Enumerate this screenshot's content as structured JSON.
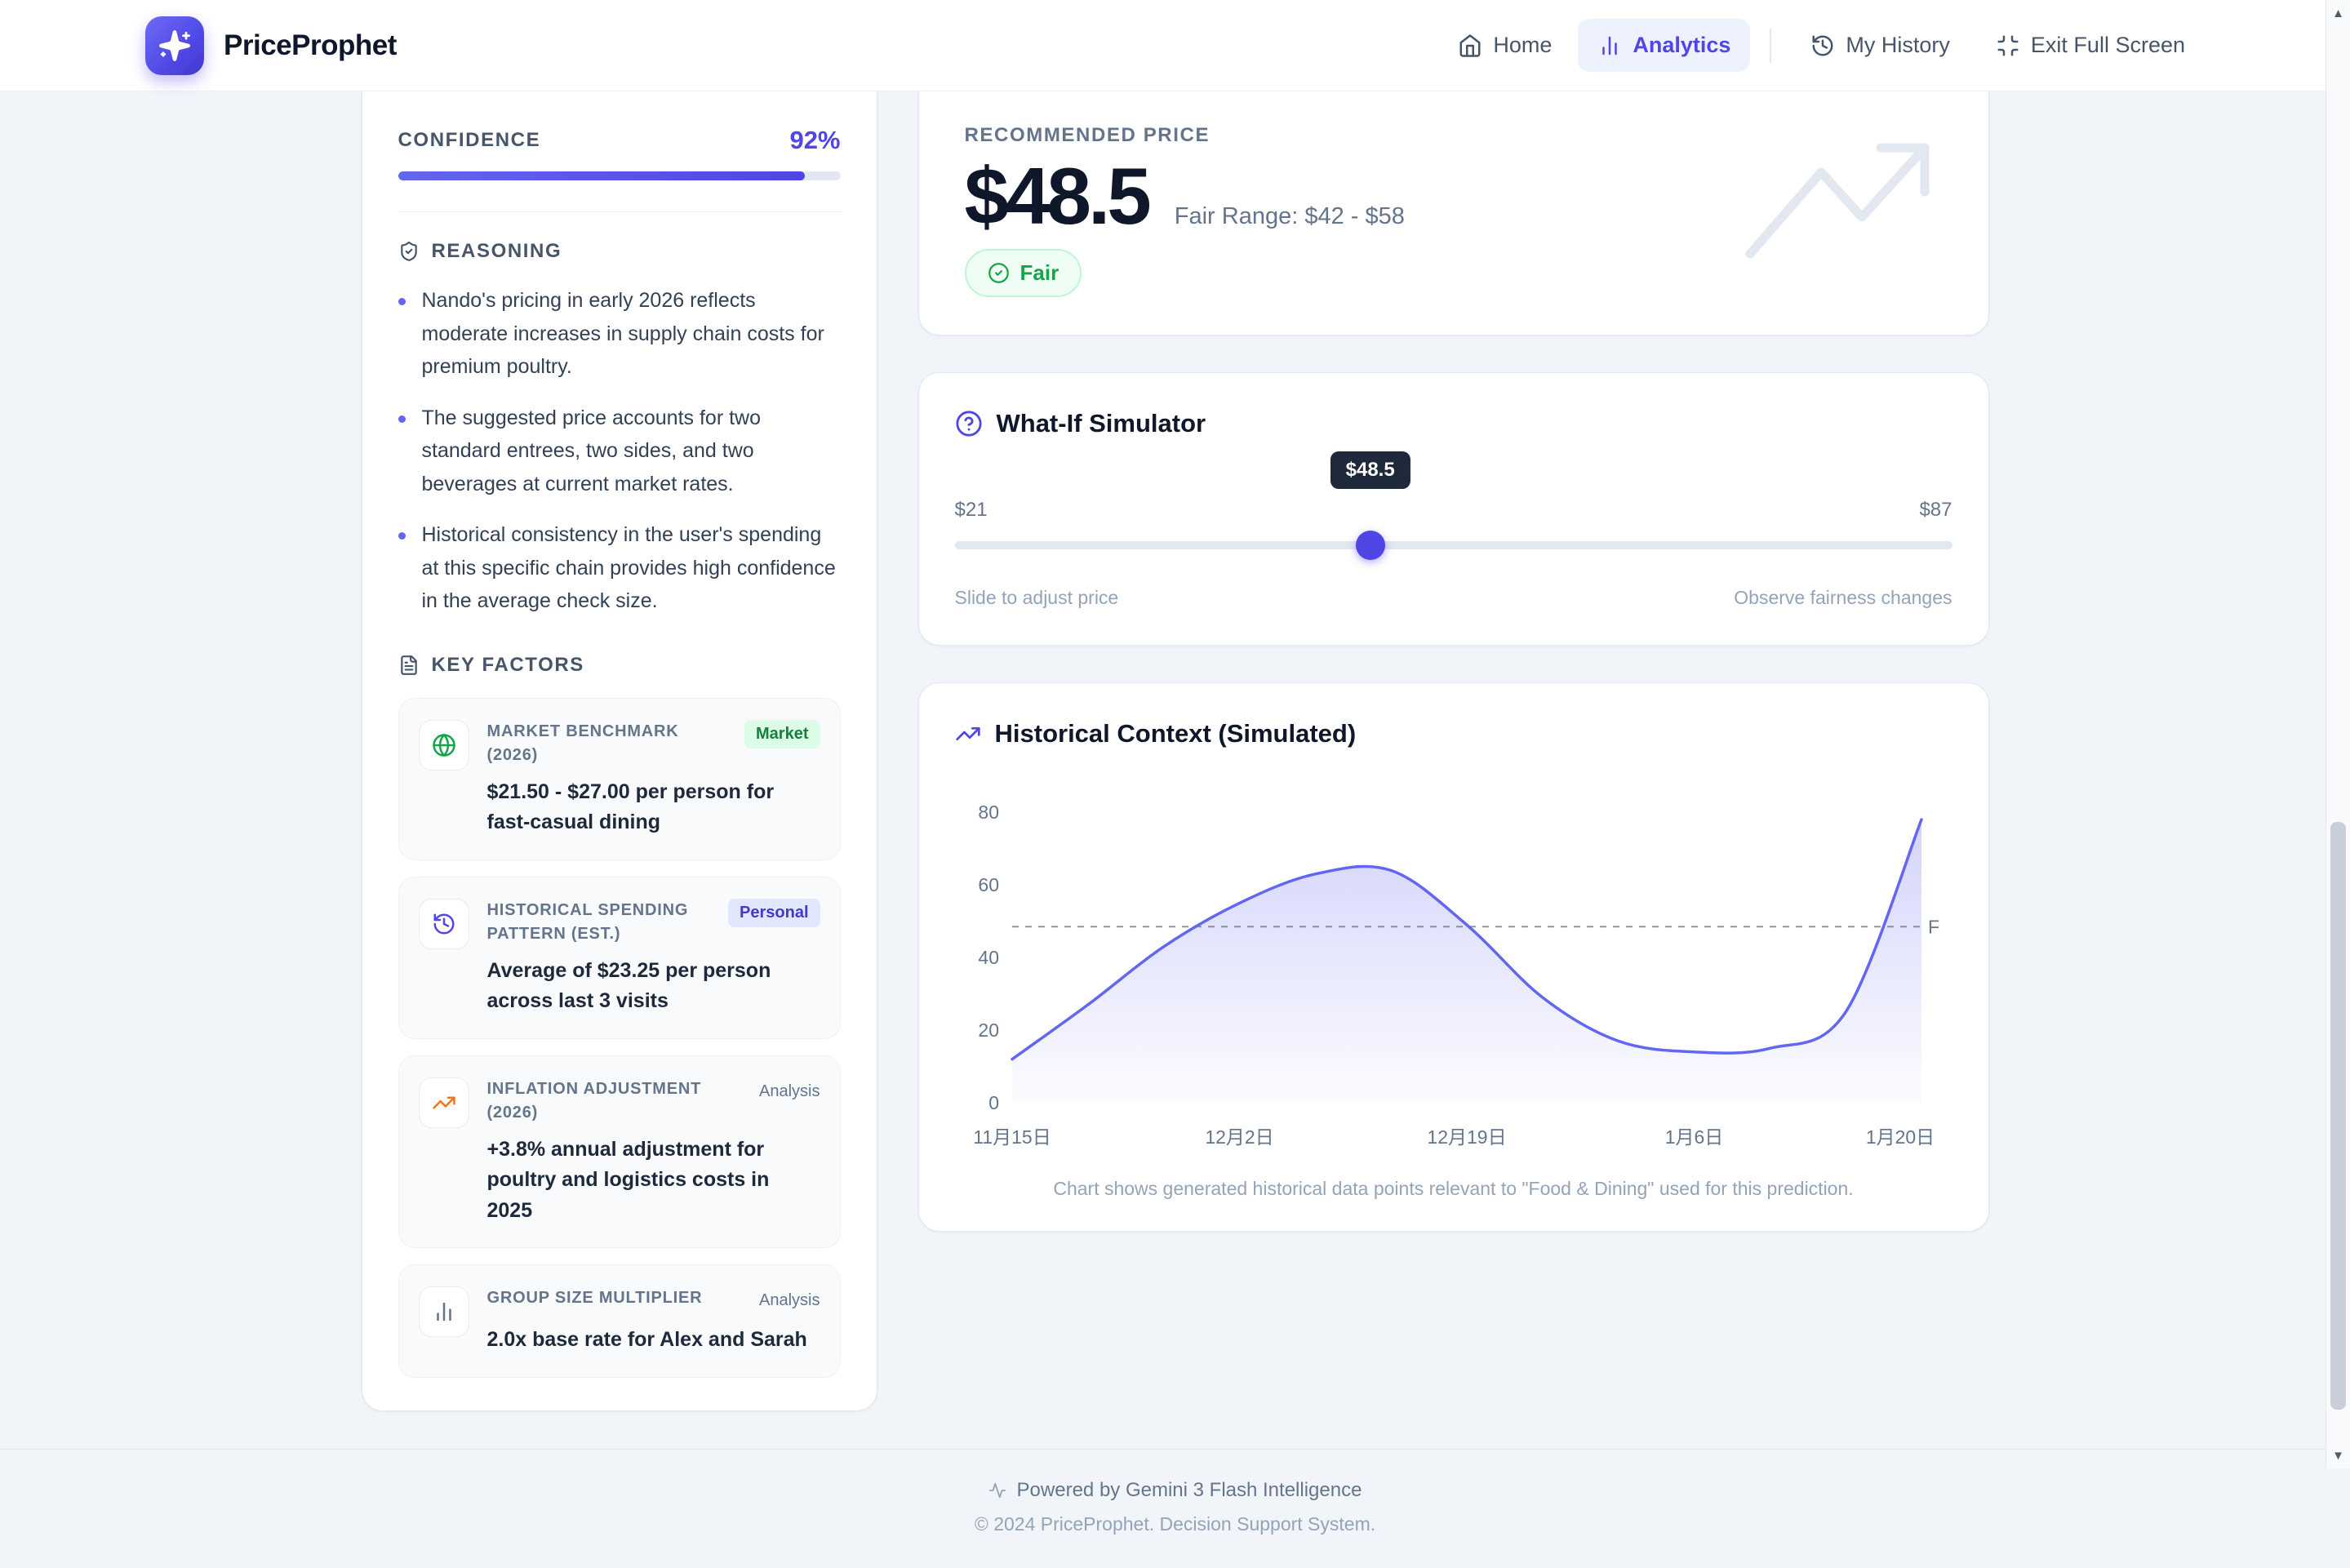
{
  "brand": {
    "name": "PriceProphet"
  },
  "nav": {
    "items": [
      {
        "label": "Home"
      },
      {
        "label": "Analytics"
      },
      {
        "label": "My History"
      },
      {
        "label": "Exit Full Screen"
      }
    ]
  },
  "confidence": {
    "label": "CONFIDENCE",
    "value": "92%",
    "percent": 92
  },
  "reasoning": {
    "title": "REASONING",
    "bullets": [
      "Nando's pricing in early 2026 reflects moderate increases in supply chain costs for premium poultry.",
      "The suggested price accounts for two standard entrees, two sides, and two beverages at current market rates.",
      "Historical consistency in the user's spending at this specific chain provides high confidence in the average check size."
    ]
  },
  "key_factors": {
    "title": "KEY FACTORS",
    "items": [
      {
        "title": "MARKET BENCHMARK (2026)",
        "tag": "Market",
        "detail": "$21.50 - $27.00 per person for fast-casual dining"
      },
      {
        "title": "HISTORICAL SPENDING PATTERN (EST.)",
        "tag": "Personal",
        "detail": "Average of $23.25 per person across last 3 visits"
      },
      {
        "title": "INFLATION ADJUSTMENT (2026)",
        "tag": "Analysis",
        "detail": "+3.8% annual adjustment for poultry and logistics costs in 2025"
      },
      {
        "title": "GROUP SIZE MULTIPLIER",
        "tag": "Analysis",
        "detail": "2.0x base rate for Alex and Sarah"
      }
    ]
  },
  "recommendation": {
    "label": "RECOMMENDED PRICE",
    "price": "$48.5",
    "fair_range": "Fair Range: $42 - $58",
    "verdict": "Fair"
  },
  "simulator": {
    "title": "What-If Simulator",
    "min": 21,
    "max": 87,
    "value": 48.5,
    "min_label": "$21",
    "max_label": "$87",
    "current_label": "$48.5",
    "hint_left": "Slide to adjust price",
    "hint_right": "Observe fairness changes"
  },
  "history": {
    "title": "Historical Context (Simulated)",
    "caption": "Chart shows generated historical data points relevant to \"Food & Dining\" used for this prediction."
  },
  "chart_data": {
    "type": "area",
    "title": "Historical Context (Simulated)",
    "values": [
      12,
      27,
      43,
      55,
      63,
      64,
      49,
      29,
      17,
      14,
      15,
      25,
      78
    ],
    "x_tick_indices": [
      0,
      3,
      6,
      9,
      12
    ],
    "x_tick_labels": [
      "11月15日",
      "12月2日",
      "12月19日",
      "1月6日",
      "1月20日"
    ],
    "y_ticks": [
      0,
      20,
      40,
      60,
      80
    ],
    "ylim": [
      0,
      85
    ],
    "reference_line": {
      "value": 48.5,
      "label": "F"
    },
    "line_color": "#6366f1",
    "area_color": "#6366f1",
    "grid": false,
    "legend_position": "none",
    "xlabel": "",
    "ylabel": ""
  },
  "footer": {
    "powered_by": "Powered by Gemini 3 Flash Intelligence",
    "copyright": "© 2024 PriceProphet. Decision Support System."
  },
  "colors": {
    "accent": "#4f46e5",
    "accent_light": "#eef2ff",
    "positive": "#16a34a",
    "warning": "#f97316",
    "page_bg": "#f1f5f9"
  }
}
